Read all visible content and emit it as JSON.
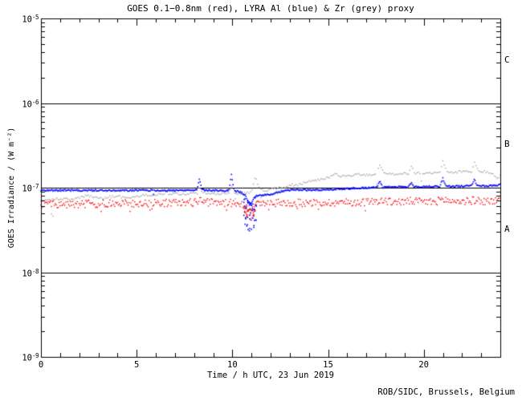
{
  "footer": {
    "credit": "ROB/SIDC, Brussels, Belgium"
  },
  "colors": {
    "background": "#ffffff",
    "frame": "#000000",
    "text": "#000000",
    "goes_red": "#ff0000",
    "lyra_al_blue": "#0000ff",
    "lyra_zr_grey": "#a0a0a0"
  },
  "chart_data": {
    "type": "scatter",
    "title": "GOES 0.1−0.8nm (red), LYRA Al (blue) & Zr (grey) proxy",
    "xlabel": "Time / h UTC, 23 Jun 2019",
    "ylabel": "GOES Irradiance / (W m⁻²)",
    "x_range": [
      0,
      24
    ],
    "y_log_range": [
      -9,
      -5
    ],
    "grid": false,
    "legend_position": "in-title",
    "xticks": {
      "major": [
        0,
        5,
        10,
        15,
        20
      ],
      "minor_step_h": 1
    },
    "yticks": [
      {
        "exp": "-5",
        "value": 1e-05
      },
      {
        "exp": "-6",
        "value": 1e-06
      },
      {
        "exp": "-7",
        "value": 1e-07
      },
      {
        "exp": "-8",
        "value": 1e-08
      },
      {
        "exp": "-9",
        "value": 1e-09
      }
    ],
    "reference_lines": [
      1e-06,
      1e-07,
      1e-08
    ],
    "flare_class_labels": [
      {
        "label": "C",
        "value": 3.16e-06
      },
      {
        "label": "B",
        "value": 3.16e-07
      },
      {
        "label": "A",
        "value": 3.16e-08
      }
    ],
    "series": [
      {
        "name": "LYRA Zr proxy",
        "color": "#a0a0a0",
        "noise_decades": 0.013,
        "step_h": 0.075,
        "dot": 1.4,
        "outlier_chance": 0.008,
        "outlier_depth": 0.25,
        "points": [
          [
            0,
            7e-08
          ],
          [
            0.5,
            7.2e-08
          ],
          [
            1,
            7.4e-08
          ],
          [
            1.5,
            7.2e-08
          ],
          [
            2,
            7.6e-08
          ],
          [
            2.4,
            8.1e-08
          ],
          [
            2.8,
            7.7e-08
          ],
          [
            3.2,
            7.5e-08
          ],
          [
            3.6,
            7.8e-08
          ],
          [
            4,
            7.9e-08
          ],
          [
            4.4,
            7.6e-08
          ],
          [
            4.8,
            7.8e-08
          ],
          [
            5.2,
            8e-08
          ],
          [
            5.6,
            8.2e-08
          ],
          [
            6,
            8.3e-08
          ],
          [
            6.45,
            8.3e-08
          ],
          [
            6.55,
            9.2e-08
          ],
          [
            6.7,
            8.3e-08
          ],
          [
            7,
            8.6e-08
          ],
          [
            7.4,
            8.3e-08
          ],
          [
            7.8,
            8.5e-08
          ],
          [
            8.15,
            8.7e-08
          ],
          [
            8.28,
            1.02e-07
          ],
          [
            8.45,
            8.7e-08
          ],
          [
            8.8,
            8.6e-08
          ],
          [
            9.2,
            8.4e-08
          ],
          [
            9.6,
            8.5e-08
          ],
          [
            9.85,
            8.7e-08
          ],
          [
            9.95,
            1.1e-07
          ],
          [
            10.1,
            8.7e-08
          ],
          [
            10.5,
            8.5e-08
          ],
          [
            10.9,
            8.8e-08
          ],
          [
            11.05,
            9.5e-08
          ],
          [
            11.2,
            1.36e-07
          ],
          [
            11.4,
            1.02e-07
          ],
          [
            11.6,
            9.4e-08
          ],
          [
            11.8,
            9.3e-08
          ],
          [
            12.1,
            9.7e-08
          ],
          [
            12.5,
            1e-07
          ],
          [
            12.9,
            1.04e-07
          ],
          [
            13.1,
            1.08e-07
          ],
          [
            13.4,
            1.06e-07
          ],
          [
            13.8,
            1.16e-07
          ],
          [
            14.2,
            1.2e-07
          ],
          [
            14.6,
            1.26e-07
          ],
          [
            15.0,
            1.32e-07
          ],
          [
            15.4,
            1.45e-07
          ],
          [
            15.7,
            1.35e-07
          ],
          [
            16.1,
            1.38e-07
          ],
          [
            16.5,
            1.44e-07
          ],
          [
            16.9,
            1.42e-07
          ],
          [
            17.3,
            1.43e-07
          ],
          [
            17.55,
            1.46e-07
          ],
          [
            17.7,
            1.95e-07
          ],
          [
            17.9,
            1.48e-07
          ],
          [
            18.3,
            1.44e-07
          ],
          [
            18.8,
            1.46e-07
          ],
          [
            19.2,
            1.48e-07
          ],
          [
            19.35,
            1.76e-07
          ],
          [
            19.55,
            1.48e-07
          ],
          [
            19.9,
            1.49e-07
          ],
          [
            20.4,
            1.5e-07
          ],
          [
            20.85,
            1.52e-07
          ],
          [
            21.0,
            2.05e-07
          ],
          [
            21.2,
            1.53e-07
          ],
          [
            21.6,
            1.52e-07
          ],
          [
            22.0,
            1.54e-07
          ],
          [
            22.5,
            1.56e-07
          ],
          [
            22.65,
            2.05e-07
          ],
          [
            22.85,
            1.56e-07
          ],
          [
            23.2,
            1.55e-07
          ],
          [
            23.55,
            1.48e-07
          ],
          [
            23.85,
            1.28e-07
          ],
          [
            24,
            1.38e-07
          ]
        ]
      },
      {
        "name": "GOES 0.1-0.8nm",
        "color": "#ff0000",
        "noise_decades": 0.045,
        "step_h": 0.05,
        "dot": 1.4,
        "outlier_chance": 0.03,
        "outlier_depth": 0.1,
        "points": [
          [
            0,
            6.4e-08
          ],
          [
            1,
            6.3e-08
          ],
          [
            2,
            6.4e-08
          ],
          [
            3,
            6.4e-08
          ],
          [
            4,
            6.5e-08
          ],
          [
            5,
            6.5e-08
          ],
          [
            6,
            6.6e-08
          ],
          [
            7,
            6.6e-08
          ],
          [
            8,
            6.7e-08
          ],
          [
            8.28,
            7.1e-08
          ],
          [
            8.6,
            6.7e-08
          ],
          [
            9.5,
            6.6e-08
          ],
          [
            10.2,
            6.6e-08
          ],
          [
            10.7,
            6.1e-08
          ],
          [
            10.95,
            5.7e-08
          ],
          [
            11.2,
            6.3e-08
          ],
          [
            11.6,
            6.5e-08
          ],
          [
            12.5,
            6.6e-08
          ],
          [
            13.5,
            6.6e-08
          ],
          [
            14.5,
            6.6e-08
          ],
          [
            15.5,
            6.7e-08
          ],
          [
            16.5,
            6.7e-08
          ],
          [
            17.2,
            6.8e-08
          ],
          [
            17.7,
            7.1e-08
          ],
          [
            18.2,
            6.8e-08
          ],
          [
            19.2,
            6.8e-08
          ],
          [
            19.35,
            7e-08
          ],
          [
            19.8,
            6.8e-08
          ],
          [
            20.6,
            6.8e-08
          ],
          [
            21.0,
            7.3e-08
          ],
          [
            21.4,
            6.9e-08
          ],
          [
            22.3,
            6.9e-08
          ],
          [
            22.65,
            7.1e-08
          ],
          [
            23.1,
            6.9e-08
          ],
          [
            24,
            7e-08
          ]
        ]
      },
      {
        "name": "LYRA Al proxy",
        "color": "#0000ff",
        "noise_decades": 0.01,
        "step_h": 0.042,
        "dot": 1.6,
        "outlier_chance": 0.006,
        "outlier_depth": 0.2,
        "points": [
          [
            0,
            9.3e-08
          ],
          [
            1,
            9.3e-08
          ],
          [
            2,
            9.25e-08
          ],
          [
            3,
            9.3e-08
          ],
          [
            4,
            9.2e-08
          ],
          [
            5,
            9.3e-08
          ],
          [
            6,
            9.3e-08
          ],
          [
            7,
            9.25e-08
          ],
          [
            8,
            9.3e-08
          ],
          [
            8.15,
            9.4e-08
          ],
          [
            8.28,
            1.3e-07
          ],
          [
            8.42,
            9.4e-08
          ],
          [
            9,
            9.3e-08
          ],
          [
            9.5,
            9.2e-08
          ],
          [
            9.82,
            9.3e-08
          ],
          [
            9.95,
            1.42e-07
          ],
          [
            10.1,
            9.1e-08
          ],
          [
            10.45,
            8.9e-08
          ],
          [
            10.65,
            8.2e-08
          ],
          [
            10.85,
            6.8e-08
          ],
          [
            11.0,
            6.6e-08
          ],
          [
            11.15,
            7.8e-08
          ],
          [
            11.35,
            8.1e-08
          ],
          [
            11.7,
            8.2e-08
          ],
          [
            12.1,
            8.4e-08
          ],
          [
            12.4,
            8.9e-08
          ],
          [
            12.8,
            9.3e-08
          ],
          [
            13.5,
            9.4e-08
          ],
          [
            14.5,
            9.4e-08
          ],
          [
            15.5,
            9.6e-08
          ],
          [
            16.5,
            9.9e-08
          ],
          [
            17.2,
            1e-07
          ],
          [
            17.55,
            1.01e-07
          ],
          [
            17.7,
            1.2e-07
          ],
          [
            17.85,
            1.01e-07
          ],
          [
            18.5,
            1.02e-07
          ],
          [
            19.2,
            1.02e-07
          ],
          [
            19.35,
            1.15e-07
          ],
          [
            19.5,
            1.02e-07
          ],
          [
            20.3,
            1.03e-07
          ],
          [
            20.85,
            1.04e-07
          ],
          [
            21.0,
            1.3e-07
          ],
          [
            21.15,
            1.04e-07
          ],
          [
            22.0,
            1.04e-07
          ],
          [
            22.5,
            1.05e-07
          ],
          [
            22.65,
            1.25e-07
          ],
          [
            22.8,
            1.05e-07
          ],
          [
            23.3,
            1.04e-07
          ],
          [
            23.8,
            1.06e-07
          ],
          [
            24,
            1.1e-07
          ]
        ]
      }
    ],
    "scatter_clusters": [
      {
        "series": "LYRA Al proxy",
        "start": 10.6,
        "end": 11.25,
        "max_drop_decades": 0.35,
        "count": 45
      },
      {
        "series": "GOES 0.1-0.8nm",
        "start": 10.6,
        "end": 11.2,
        "max_drop_decades": 0.13,
        "count": 28
      }
    ],
    "outlier_points": [
      {
        "series": "LYRA Zr proxy",
        "points": [
          [
            0.55,
            4.9e-08
          ],
          [
            0.63,
            4.6e-08
          ],
          [
            8.5,
            7.2e-08
          ],
          [
            10.15,
            7.4e-08
          ],
          [
            11.5,
            7.6e-08
          ],
          [
            11.62,
            7e-08
          ],
          [
            11.72,
            6.6e-08
          ]
        ]
      }
    ]
  }
}
